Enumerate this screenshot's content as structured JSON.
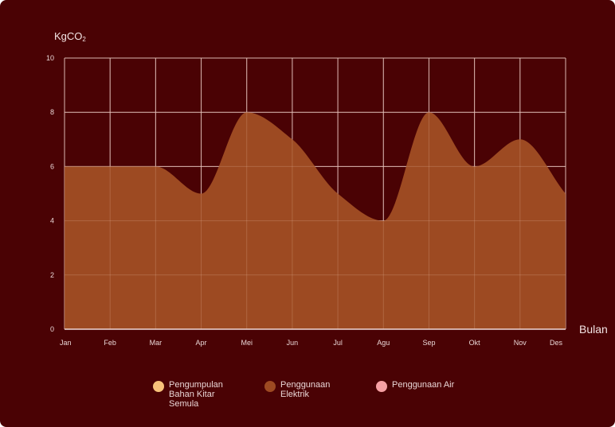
{
  "chart_data": {
    "type": "area",
    "ylabel": "KgCO",
    "ylabel_subscript": "2",
    "xlabel": "Bulan",
    "categories": [
      "Jan",
      "Feb",
      "Mar",
      "Apr",
      "Mei",
      "Jun",
      "Jul",
      "Agu",
      "Sep",
      "Okt",
      "Nov",
      "Des"
    ],
    "ylim": [
      0,
      10
    ],
    "yticks": [
      0,
      2,
      4,
      6,
      8,
      10
    ],
    "grid": true,
    "legend_position": "bottom",
    "series": [
      {
        "name": "Penggunaan Elektrik",
        "color": "#9d4a22",
        "values": [
          6,
          6,
          6,
          5,
          8,
          7,
          5,
          4,
          8,
          6,
          7,
          5
        ]
      }
    ],
    "legend": [
      {
        "label": "Pengumpulan\nBahan Kitar\nSemula",
        "color": "#f7c27a"
      },
      {
        "label": "Penggunaan\nElektrik",
        "color": "#9d4a22"
      },
      {
        "label": "Penggunaan Air",
        "color": "#f7a0a4"
      }
    ]
  }
}
